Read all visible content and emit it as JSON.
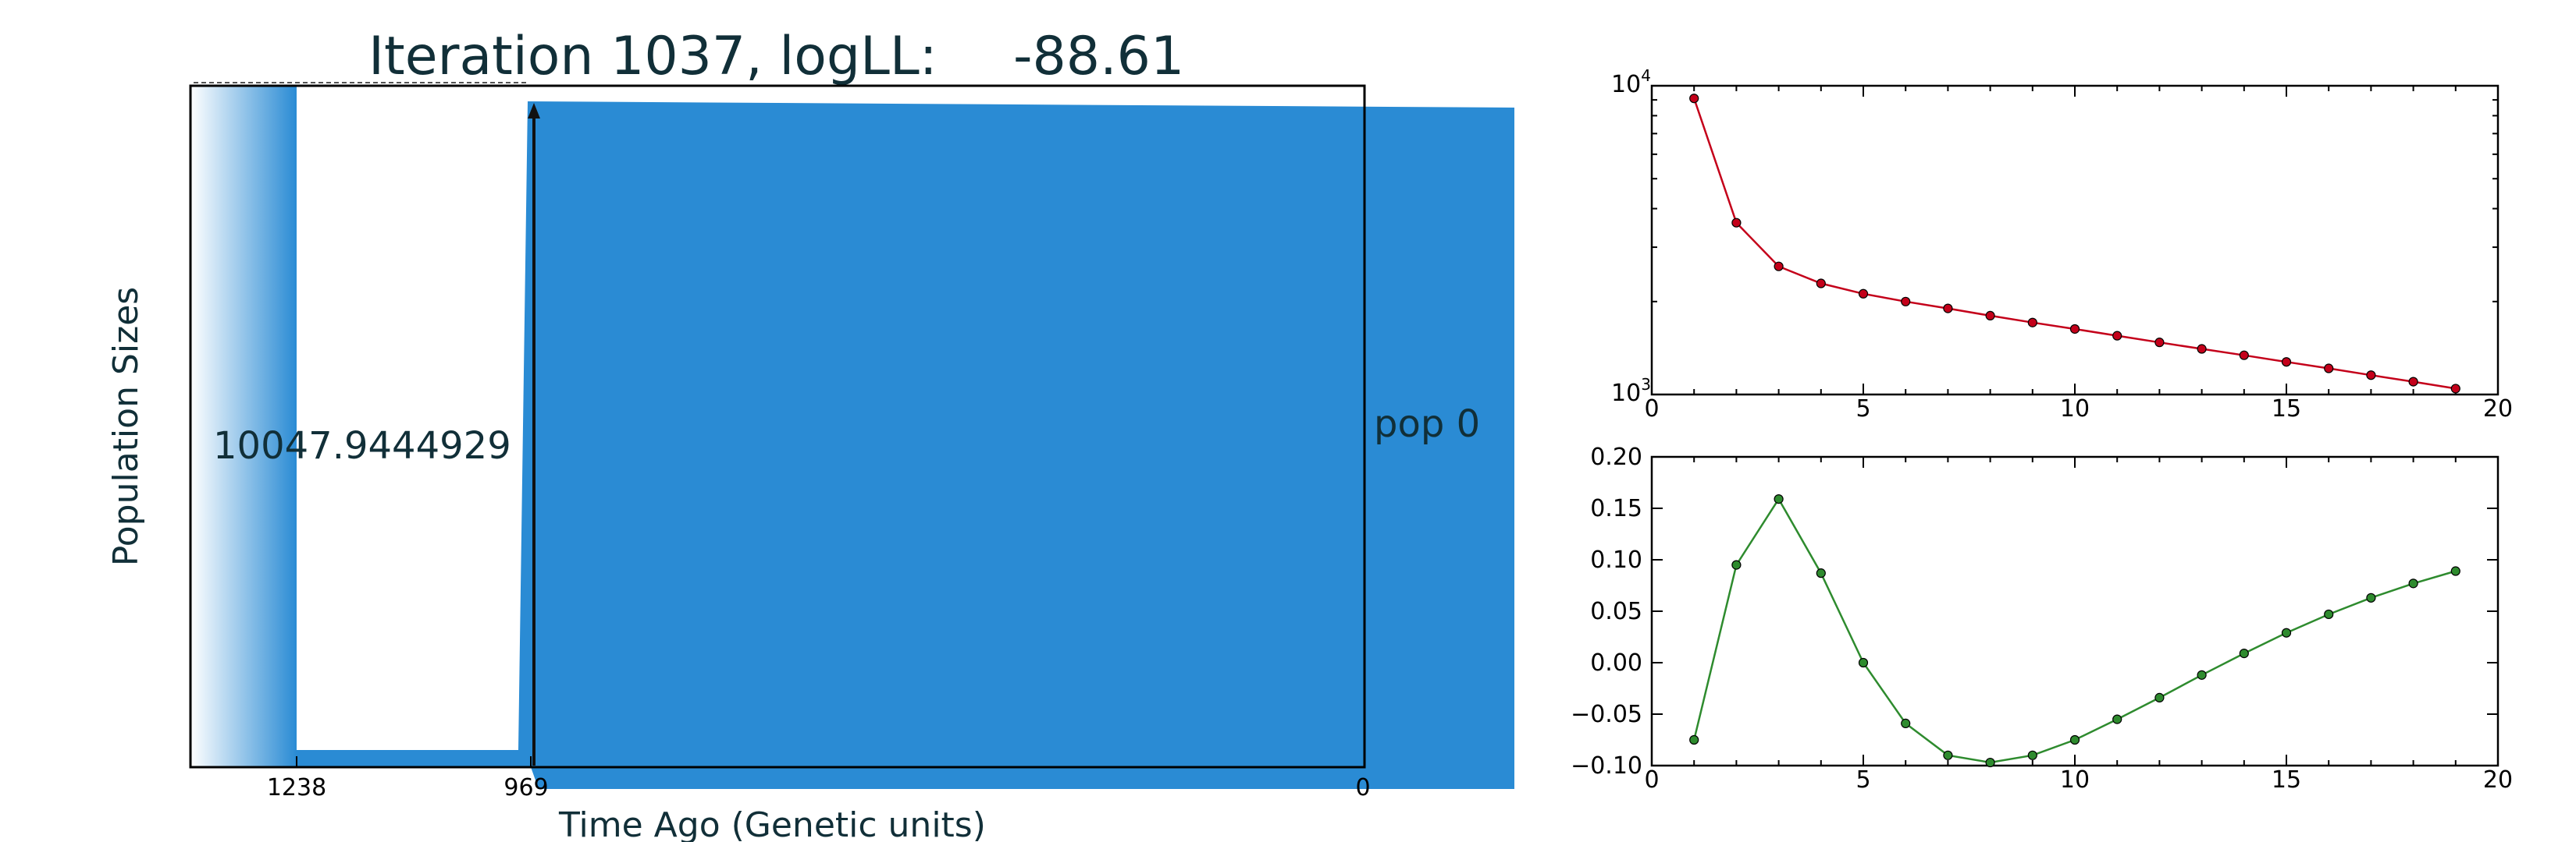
{
  "title": {
    "prefix": "Iteration",
    "iteration": "1037,",
    "ll_label": "logLL:",
    "ll_value": "-88.61"
  },
  "chart_data": [
    {
      "type": "area",
      "ylabel": "Population Sizes",
      "xlabel": "Time Ago (Genetic units)",
      "x_ticks": [
        "1238",
        "969",
        "0"
      ],
      "annotations": {
        "population_size": "10047.9444929",
        "population_label": "pop 0"
      },
      "colors": {
        "fill": "#2a8bd4",
        "text": "#112f38"
      }
    },
    {
      "type": "line",
      "y_scale": "log",
      "xlim": [
        0,
        20
      ],
      "ylim": [
        1000,
        10000
      ],
      "x_ticks": [
        "0",
        "5",
        "10",
        "15",
        "20"
      ],
      "y_ticks": [
        {
          "base": "10",
          "exp": "4"
        },
        {
          "base": "10",
          "exp": "3"
        }
      ],
      "color": "#c4001a",
      "x": [
        1,
        2,
        3,
        4,
        5,
        6,
        7,
        8,
        9,
        10,
        11,
        12,
        13,
        14,
        15,
        16,
        17,
        18,
        19
      ],
      "y": [
        9100,
        3600,
        2600,
        2290,
        2120,
        2000,
        1900,
        1800,
        1710,
        1630,
        1550,
        1475,
        1405,
        1340,
        1275,
        1215,
        1155,
        1100,
        1045
      ]
    },
    {
      "type": "line",
      "xlim": [
        0,
        20
      ],
      "ylim": [
        -0.1,
        0.2
      ],
      "x_ticks": [
        "0",
        "5",
        "10",
        "15",
        "20"
      ],
      "y_ticks": [
        "0.20",
        "0.15",
        "0.10",
        "0.05",
        "0.00",
        "−0.05",
        "−0.10"
      ],
      "color": "#2e8b2e",
      "x": [
        1,
        2,
        3,
        4,
        5,
        6,
        7,
        8,
        9,
        10,
        11,
        12,
        13,
        14,
        15,
        16,
        17,
        18,
        19
      ],
      "y": [
        -0.075,
        0.095,
        0.159,
        0.087,
        0.0,
        -0.059,
        -0.09,
        -0.097,
        -0.09,
        -0.075,
        -0.055,
        -0.034,
        -0.012,
        0.009,
        0.029,
        0.047,
        0.063,
        0.077,
        0.089
      ]
    }
  ]
}
